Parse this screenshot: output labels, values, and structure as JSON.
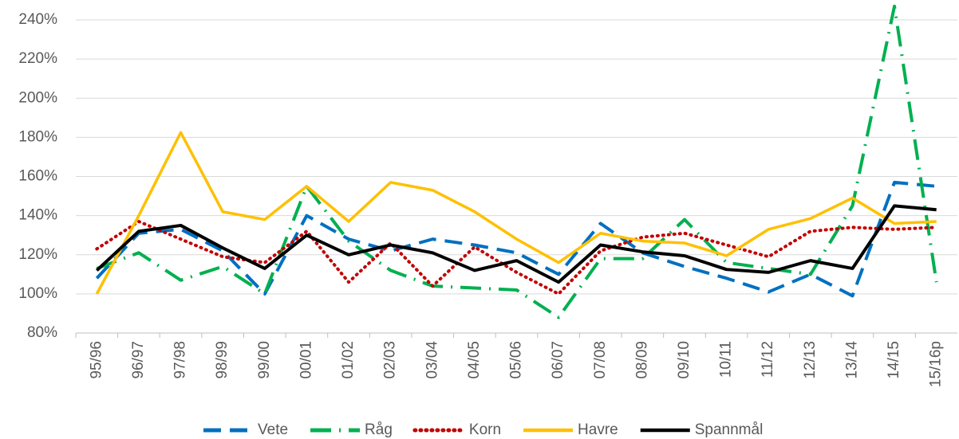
{
  "chart_data": {
    "type": "line",
    "categories": [
      "95/96",
      "96/97",
      "97/98",
      "98/99",
      "99/00",
      "00/01",
      "01/02",
      "02/03",
      "03/04",
      "04/05",
      "05/06",
      "06/07",
      "07/08",
      "08/09",
      "09/10",
      "10/11",
      "11/12",
      "12/13",
      "13/14",
      "14/15",
      "15/16p"
    ],
    "series": [
      {
        "name": "Vete",
        "color": "#0070c0",
        "style": "dash",
        "values": [
          108,
          131,
          133,
          122,
          100,
          140,
          128,
          122,
          128,
          125,
          121,
          110,
          136,
          121,
          114,
          108,
          101,
          110,
          99,
          157,
          155
        ]
      },
      {
        "name": "Råg",
        "color": "#00b050",
        "style": "dashdot",
        "values": [
          113,
          121,
          107,
          114,
          100,
          155,
          127,
          112,
          104,
          103,
          102,
          88,
          118,
          118,
          138,
          116,
          113,
          110,
          145,
          247,
          106
        ]
      },
      {
        "name": "Korn",
        "color": "#c00000",
        "style": "dot",
        "values": [
          123,
          137,
          128,
          119,
          116,
          132,
          106,
          126,
          104,
          124,
          111,
          100,
          122,
          129,
          131,
          125,
          119,
          132,
          134,
          133,
          134
        ]
      },
      {
        "name": "Havre",
        "color": "#ffc000",
        "style": "solid",
        "values": [
          100,
          140,
          182.5,
          142,
          138,
          155,
          137,
          157,
          153,
          142,
          128,
          116,
          131,
          127,
          126,
          119.5,
          133,
          138.5,
          149,
          136,
          137
        ]
      },
      {
        "name": "Spannmål",
        "color": "#000000",
        "style": "solid",
        "values": [
          112,
          132,
          135,
          123.5,
          113,
          130,
          120,
          125,
          121,
          112,
          117,
          106,
          125,
          121.5,
          119.5,
          112.5,
          111,
          117,
          113,
          145,
          143
        ]
      }
    ],
    "ylim": [
      80,
      250
    ],
    "yticks": [
      {
        "value": 80,
        "label": "80%"
      },
      {
        "value": 100,
        "label": "100%"
      },
      {
        "value": 120,
        "label": "120%"
      },
      {
        "value": 140,
        "label": "140%"
      },
      {
        "value": 160,
        "label": "160%"
      },
      {
        "value": 180,
        "label": "180%"
      },
      {
        "value": 200,
        "label": "200%"
      },
      {
        "value": 220,
        "label": "220%"
      },
      {
        "value": 240,
        "label": "240%"
      }
    ],
    "grid": true,
    "legend": "bottom"
  }
}
